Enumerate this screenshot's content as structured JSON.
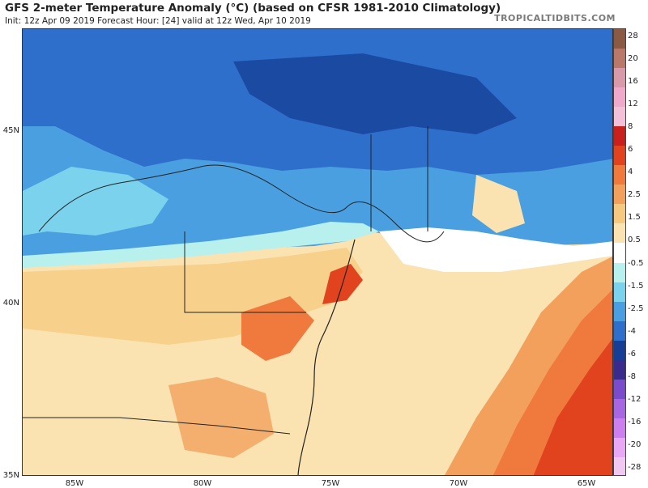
{
  "header": {
    "title": "GFS 2-meter Temperature Anomaly (°C) (based on CFSR 1981-2010 Climatology)",
    "subtitle": "Init: 12z Apr 09 2019   Forecast Hour: [24]   valid at 12z Wed, Apr 10 2019",
    "credit": "TROPICALTIDBITS.COM"
  },
  "axes": {
    "lat_labels": [
      "45N",
      "40N",
      "35N"
    ],
    "lon_labels": [
      "85W",
      "80W",
      "75W",
      "70W",
      "65W"
    ]
  },
  "colorbar": {
    "labels": [
      "28",
      "20",
      "16",
      "12",
      "8",
      "6",
      "4",
      "2.5",
      "1.5",
      "0.5",
      "-0.5",
      "-1.5",
      "-2.5",
      "-4",
      "-6",
      "-8",
      "-12",
      "-16",
      "-20",
      "-28"
    ],
    "colors": [
      "#8a5a44",
      "#b8786a",
      "#d89aa8",
      "#eeaac8",
      "#f4c0d8",
      "#c8201c",
      "#e2431f",
      "#f07a3e",
      "#f3a05c",
      "#f6c980",
      "#fae3b0",
      "#ffffff",
      "#b8f0ee",
      "#7ad2ec",
      "#4a9fe0",
      "#2e6fcc",
      "#153e94",
      "#3a2a8c",
      "#7a4ccc",
      "#a866e0",
      "#cc80ee",
      "#e8a8f4",
      "#f0c8f0"
    ]
  }
}
